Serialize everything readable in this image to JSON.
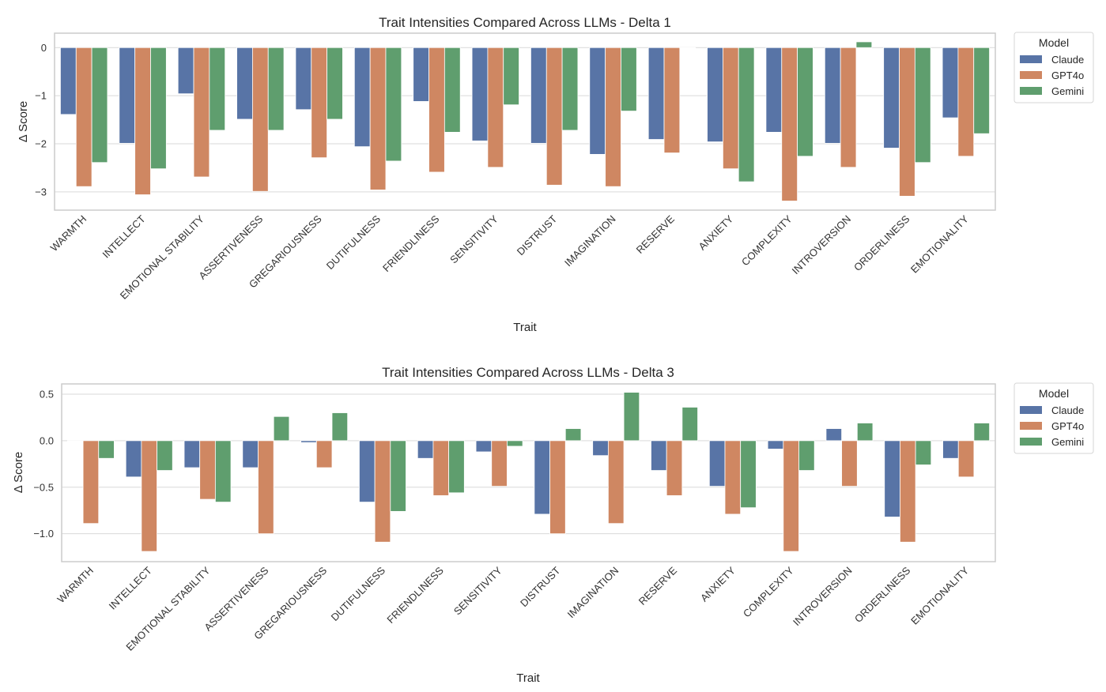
{
  "chart_data": [
    {
      "type": "bar",
      "title": "Trait Intensities Compared Across LLMs - Delta 1",
      "xlabel": "Trait",
      "ylabel": "Δ Score",
      "ylim": [
        -3.38,
        0.3
      ],
      "yticks": [
        0,
        -1,
        -2,
        -3
      ],
      "ytick_labels": [
        "0",
        "−1",
        "−2",
        "−3"
      ],
      "grid": true,
      "legend": {
        "title": "Model",
        "placement": "outside-top-right"
      },
      "categories": [
        "WARMTH",
        "INTELLECT",
        "EMOTIONAL STABILITY",
        "ASSERTIVENESS",
        "GREGARIOUSNESS",
        "DUTIFULNESS",
        "FRIENDLINESS",
        "SENSITIVITY",
        "DISTRUST",
        "IMAGINATION",
        "RESERVE",
        "ANXIETY",
        "COMPLEXITY",
        "INTROVERSION",
        "ORDERLINESS",
        "EMOTIONALITY"
      ],
      "series": [
        {
          "name": "Claude",
          "color": "#5874a6",
          "values": [
            -1.39,
            -1.99,
            -0.96,
            -1.49,
            -1.29,
            -2.06,
            -1.12,
            -1.94,
            -1.99,
            -2.22,
            -1.91,
            -1.96,
            -1.76,
            -1.99,
            -2.09,
            -1.46
          ]
        },
        {
          "name": "GPT4o",
          "color": "#cf8762",
          "values": [
            -2.89,
            -3.06,
            -2.69,
            -2.99,
            -2.29,
            -2.96,
            -2.59,
            -2.49,
            -2.86,
            -2.89,
            -2.19,
            -2.52,
            -3.19,
            -2.49,
            -3.09,
            -2.26
          ]
        },
        {
          "name": "Gemini",
          "color": "#5f9e6e",
          "values": [
            -2.39,
            -2.52,
            -1.72,
            -1.72,
            -1.49,
            -2.36,
            -1.76,
            -1.19,
            -1.72,
            -1.32,
            0.0,
            -2.79,
            -2.26,
            0.12,
            -2.39,
            -1.79
          ]
        }
      ]
    },
    {
      "type": "bar",
      "title": "Trait Intensities Compared Across LLMs - Delta 3",
      "xlabel": "Trait",
      "ylabel": "Δ Score",
      "ylim": [
        -1.3,
        0.61
      ],
      "yticks": [
        0.5,
        0.0,
        -0.5,
        -1.0
      ],
      "ytick_labels": [
        "0.5",
        "0.0",
        "−0.5",
        "−1.0"
      ],
      "grid": true,
      "legend": {
        "title": "Model",
        "placement": "outside-top-right"
      },
      "categories": [
        "WARMTH",
        "INTELLECT",
        "EMOTIONAL STABILITY",
        "ASSERTIVENESS",
        "GREGARIOUSNESS",
        "DUTIFULNESS",
        "FRIENDLINESS",
        "SENSITIVITY",
        "DISTRUST",
        "IMAGINATION",
        "RESERVE",
        "ANXIETY",
        "COMPLEXITY",
        "INTROVERSION",
        "ORDERLINESS",
        "EMOTIONALITY"
      ],
      "series": [
        {
          "name": "Claude",
          "color": "#5874a6",
          "values": [
            0.0,
            -0.39,
            -0.29,
            -0.29,
            -0.02,
            -0.66,
            -0.19,
            -0.12,
            -0.79,
            -0.16,
            -0.32,
            -0.49,
            -0.09,
            0.13,
            -0.82,
            -0.19
          ]
        },
        {
          "name": "GPT4o",
          "color": "#cf8762",
          "values": [
            -0.89,
            -1.19,
            -0.63,
            -1.0,
            -0.29,
            -1.09,
            -0.59,
            -0.49,
            -1.0,
            -0.89,
            -0.59,
            -0.79,
            -1.19,
            -0.49,
            -1.09,
            -0.39
          ]
        },
        {
          "name": "Gemini",
          "color": "#5f9e6e",
          "values": [
            -0.19,
            -0.32,
            -0.66,
            0.26,
            0.3,
            -0.76,
            -0.56,
            -0.06,
            0.13,
            0.52,
            0.36,
            -0.72,
            -0.32,
            0.19,
            -0.26,
            0.19
          ]
        }
      ]
    }
  ]
}
